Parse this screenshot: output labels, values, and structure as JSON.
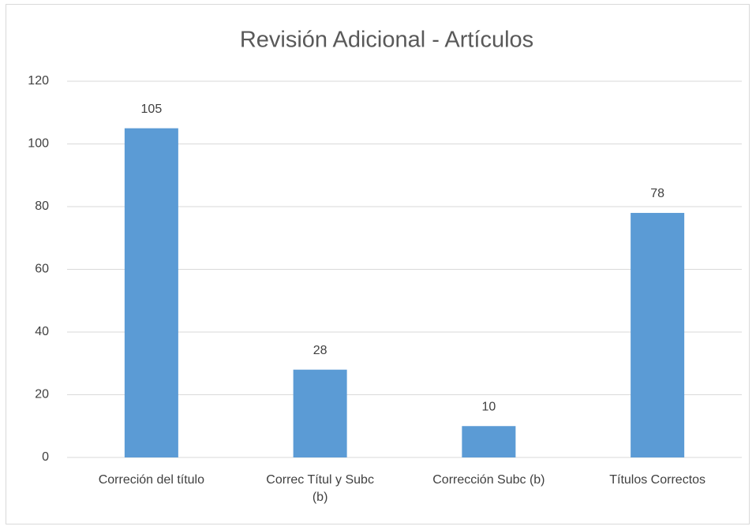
{
  "chart_data": {
    "type": "bar",
    "title": "Revisión Adicional - Artículos",
    "categories": [
      "Correción del título",
      "Correc Títul  y Subc (b)",
      "Corrección Subc (b)",
      "Títulos Correctos"
    ],
    "values": [
      105,
      28,
      10,
      78
    ],
    "color": "#5b9bd5",
    "ylim": [
      0,
      120
    ],
    "yticks": [
      0,
      20,
      40,
      60,
      80,
      100,
      120
    ],
    "grid": true
  }
}
